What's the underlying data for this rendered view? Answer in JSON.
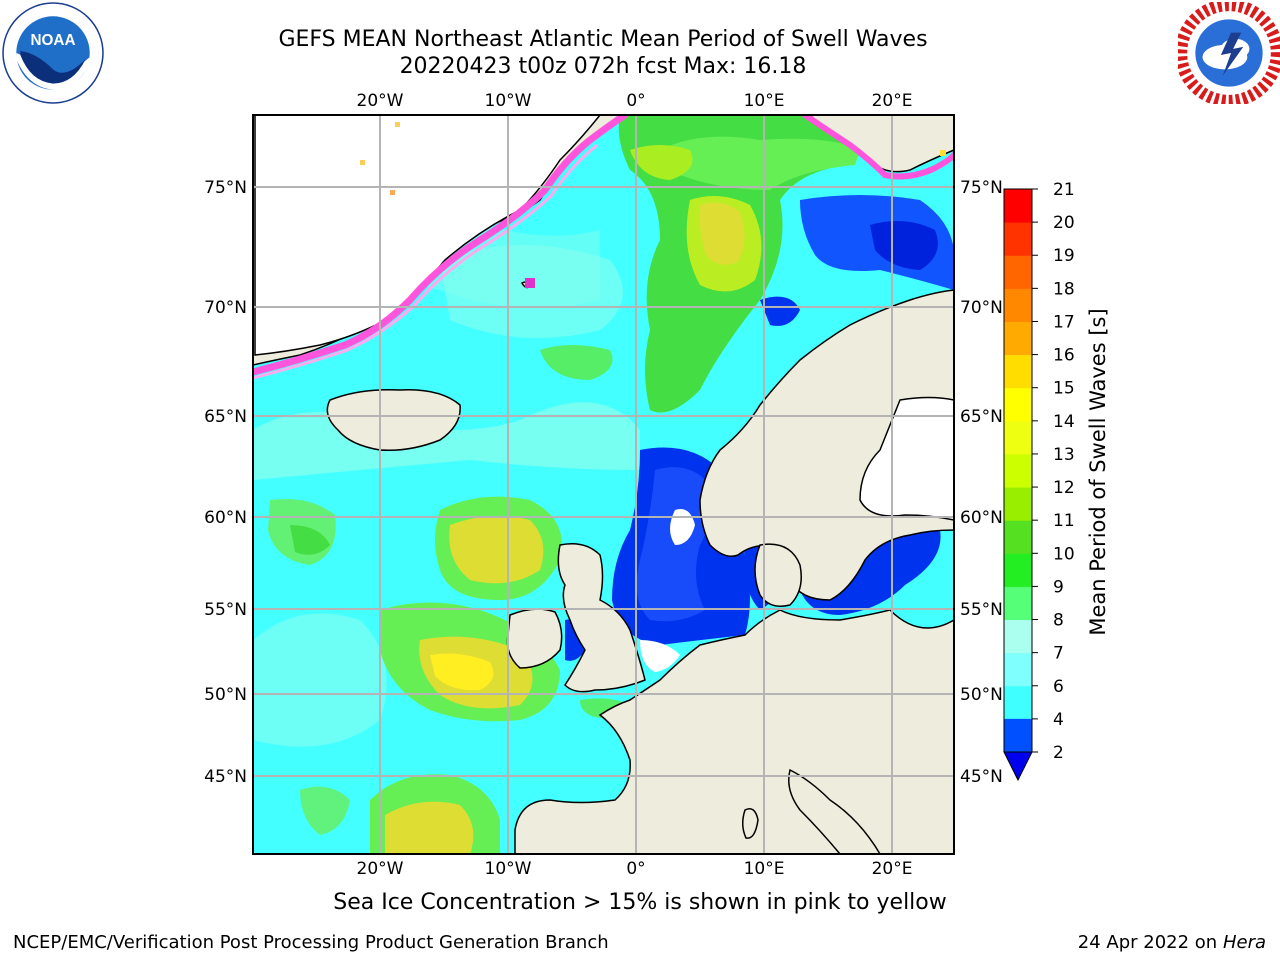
{
  "title": {
    "line1": "GEFS MEAN Northeast Atlantic Mean Period of Swell Waves",
    "line2": "20220423 t00z 072h fcst   Max: 16.18"
  },
  "logos": {
    "left": {
      "icon": "noaa-logo",
      "text": "NOAA"
    },
    "right": {
      "icon": "national-weather-service-logo"
    }
  },
  "map": {
    "region": "Northeast Atlantic",
    "lon_range": [
      -30,
      25
    ],
    "lat_range": [
      41,
      78
    ],
    "projection": "stereographic-like",
    "lon_labels": [
      "20°W",
      "10°W",
      "0°",
      "10°E",
      "20°E"
    ],
    "lat_labels": [
      "75°N",
      "70°N",
      "65°N",
      "60°N",
      "55°N",
      "50°N",
      "45°N"
    ],
    "colors": {
      "land": "#eeecdc",
      "ice_free_unknown": "#ffffff",
      "grid": "#b4b4b4"
    }
  },
  "colorbar": {
    "label": "Mean Period of Swell Waves [s]",
    "ticks": [
      "2",
      "4",
      "6",
      "7",
      "8",
      "9",
      "10",
      "11",
      "12",
      "13",
      "14",
      "15",
      "16",
      "17",
      "18",
      "19",
      "20",
      "21"
    ],
    "colors": [
      "#0050ff",
      "#00e0ff",
      "#40ffff",
      "#80ffff",
      "#aaffee",
      "#55ff77",
      "#22ee22",
      "#55e022",
      "#99ee00",
      "#ccff00",
      "#eeff11",
      "#ffff00",
      "#ffdd00",
      "#ffaa00",
      "#ff8800",
      "#ff6600",
      "#ff3300",
      "#ff0000"
    ],
    "under_color": "#0000ee",
    "extend": "min"
  },
  "note": "Sea Ice Concentration > 15% is shown in pink to yellow",
  "footer": {
    "left": "NCEP/EMC/Verification Post Processing Product Generation Branch",
    "right_prefix": "24 Apr 2022 on ",
    "right_host": "Hera"
  }
}
